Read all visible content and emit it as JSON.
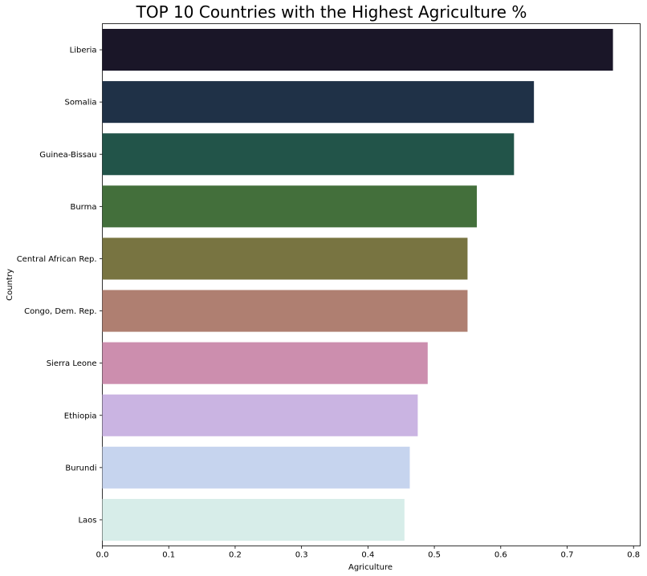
{
  "chart_data": {
    "type": "bar",
    "orientation": "horizontal",
    "title": "TOP 10 Countries with the Highest Agriculture %",
    "xlabel": "Agriculture",
    "ylabel": "Country",
    "categories": [
      "Liberia",
      "Somalia",
      "Guinea-Bissau",
      "Burma",
      "Central African Rep.",
      "Congo, Dem. Rep.",
      "Sierra Leone",
      "Ethiopia",
      "Burundi",
      "Laos"
    ],
    "values": [
      0.769,
      0.65,
      0.62,
      0.564,
      0.55,
      0.55,
      0.49,
      0.475,
      0.463,
      0.455
    ],
    "colors": [
      "#1a1628",
      "#1f3147",
      "#225449",
      "#436f3b",
      "#787441",
      "#af7f71",
      "#cc8eae",
      "#cab4e2",
      "#c6d4ee",
      "#d7ede9"
    ],
    "xlim": [
      0,
      0.81
    ],
    "xticks": [
      0,
      0.1,
      0.2,
      0.3,
      0.4,
      0.5,
      0.6,
      0.7,
      0.8
    ],
    "xtick_labels": [
      "0.0",
      "0.1",
      "0.2",
      "0.3",
      "0.4",
      "0.5",
      "0.6",
      "0.7",
      "0.8"
    ],
    "grid": false,
    "legend": "none"
  }
}
